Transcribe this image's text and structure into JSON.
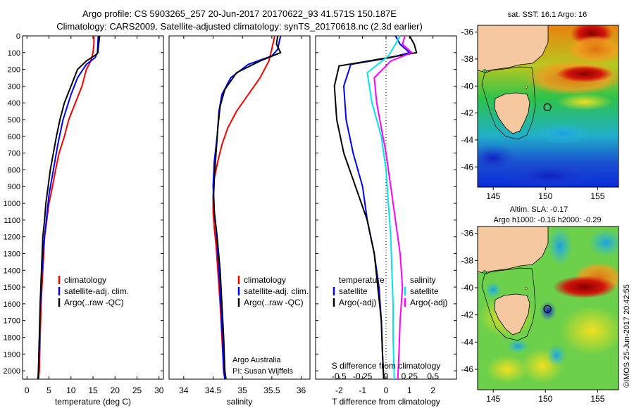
{
  "header": {
    "title_line1": "Argo profile: CS 5903265_257 20-Jun-2017 20170622_93 41.571S 150.187E",
    "title_line2": "Climatology: CARS2009. Satellite-adjusted climatology: synTS_20170618.nc (2.3d earlier)"
  },
  "colors": {
    "climatology": "#ff0000",
    "satellite": "#0000ff",
    "argo": "#000000",
    "satellite_salinity": "#00e5ee",
    "argo_salinity_adj": "#ff00ff",
    "land": "#f5c8a0",
    "map_low": "#0a2ad8",
    "map_mid": "#2ec24a",
    "map_high": "#c8140a"
  },
  "footer": {
    "stamp": "©IMOS 25-Jun-2017 20:42:55"
  },
  "chart_data": [
    {
      "id": "temperature",
      "type": "line",
      "xlabel": "temperature (deg C)",
      "ylabel": "",
      "xlim": [
        -1,
        31
      ],
      "ylim": [
        2050,
        0
      ],
      "x_ticks": [
        0,
        5,
        10,
        15,
        20,
        25,
        30
      ],
      "y_ticks": [
        0,
        100,
        200,
        300,
        400,
        500,
        600,
        700,
        800,
        900,
        1000,
        1100,
        1200,
        1300,
        1400,
        1500,
        1600,
        1700,
        1800,
        1900,
        2000
      ],
      "legend": [
        "climatology",
        "satellite-adj. clim.",
        "Argo(..raw -QC)"
      ],
      "legend_position": "center",
      "notes": [],
      "series": [
        {
          "name": "climatology",
          "color": "#ff0000",
          "points": [
            [
              15.2,
              0
            ],
            [
              15.2,
              50
            ],
            [
              15,
              100
            ],
            [
              14.5,
              150
            ],
            [
              13.5,
              200
            ],
            [
              12.5,
              300
            ],
            [
              11,
              400
            ],
            [
              9.5,
              500
            ],
            [
              8.5,
              600
            ],
            [
              7.3,
              700
            ],
            [
              6.5,
              800
            ],
            [
              5.8,
              900
            ],
            [
              5,
              1000
            ],
            [
              4.5,
              1100
            ],
            [
              4,
              1200
            ],
            [
              3.6,
              1400
            ],
            [
              3.2,
              1600
            ],
            [
              3,
              1800
            ],
            [
              2.8,
              2000
            ],
            [
              2.6,
              2050
            ]
          ]
        },
        {
          "name": "satellite-adj. clim.",
          "color": "#0000ff",
          "points": [
            [
              16.2,
              0
            ],
            [
              16.1,
              50
            ],
            [
              16,
              100
            ],
            [
              15.5,
              130
            ],
            [
              13.5,
              170
            ],
            [
              11.5,
              250
            ],
            [
              10,
              350
            ],
            [
              8.2,
              500
            ],
            [
              7,
              650
            ],
            [
              6,
              800
            ],
            [
              5,
              950
            ],
            [
              4.4,
              1100
            ],
            [
              3.8,
              1250
            ],
            [
              3.3,
              1450
            ],
            [
              3,
              1650
            ],
            [
              2.8,
              1850
            ],
            [
              2.6,
              2050
            ]
          ]
        },
        {
          "name": "Argo(..raw -QC)",
          "color": "#000000",
          "points": [
            [
              16.5,
              0
            ],
            [
              16.3,
              50
            ],
            [
              16.1,
              100
            ],
            [
              15.8,
              110
            ],
            [
              13.5,
              150
            ],
            [
              11.5,
              200
            ],
            [
              10,
              300
            ],
            [
              8.5,
              400
            ],
            [
              7.5,
              500
            ],
            [
              6.7,
              600
            ],
            [
              6,
              700
            ],
            [
              5.3,
              800
            ],
            [
              4.8,
              900
            ],
            [
              4.3,
              1000
            ],
            [
              4,
              1100
            ],
            [
              3.6,
              1200
            ],
            [
              3.3,
              1400
            ],
            [
              3,
              1600
            ],
            [
              2.8,
              1800
            ],
            [
              2.6,
              2000
            ],
            [
              2.5,
              2050
            ]
          ]
        }
      ]
    },
    {
      "id": "salinity",
      "type": "line",
      "xlabel": "salinity",
      "ylabel": "",
      "xlim": [
        33.75,
        36.15
      ],
      "ylim": [
        2050,
        0
      ],
      "x_ticks": [
        34,
        34.5,
        35,
        35.5,
        36
      ],
      "legend": [
        "climatology",
        "satellite-adj. clim.",
        "Argo(..raw -QC)"
      ],
      "legend_position": "center-right",
      "notes": [
        "Argo Australia",
        "PI: Susan Wijffels"
      ],
      "series": [
        {
          "name": "climatology",
          "color": "#ff0000",
          "points": [
            [
              35.55,
              0
            ],
            [
              35.5,
              80
            ],
            [
              35.45,
              150
            ],
            [
              35.3,
              250
            ],
            [
              35.1,
              350
            ],
            [
              34.9,
              450
            ],
            [
              34.75,
              550
            ],
            [
              34.65,
              650
            ],
            [
              34.58,
              750
            ],
            [
              34.52,
              850
            ],
            [
              34.5,
              950
            ],
            [
              34.5,
              1050
            ],
            [
              34.52,
              1150
            ],
            [
              34.55,
              1250
            ],
            [
              34.58,
              1400
            ],
            [
              34.62,
              1600
            ],
            [
              34.65,
              1800
            ],
            [
              34.68,
              2000
            ],
            [
              34.7,
              2050
            ]
          ]
        },
        {
          "name": "satellite-adj. clim.",
          "color": "#0000ff",
          "points": [
            [
              35.65,
              0
            ],
            [
              35.6,
              80
            ],
            [
              35.5,
              120
            ],
            [
              35.1,
              170
            ],
            [
              34.8,
              250
            ],
            [
              34.65,
              350
            ],
            [
              34.6,
              450
            ],
            [
              34.57,
              600
            ],
            [
              34.52,
              750
            ],
            [
              34.5,
              900
            ],
            [
              34.52,
              1050
            ],
            [
              34.56,
              1200
            ],
            [
              34.6,
              1400
            ],
            [
              34.63,
              1600
            ],
            [
              34.66,
              1800
            ],
            [
              34.68,
              2000
            ],
            [
              34.7,
              2050
            ]
          ]
        },
        {
          "name": "Argo(..raw -QC)",
          "color": "#000000",
          "points": [
            [
              35.6,
              0
            ],
            [
              35.58,
              50
            ],
            [
              35.65,
              100
            ],
            [
              35.3,
              150
            ],
            [
              34.9,
              220
            ],
            [
              34.7,
              320
            ],
            [
              34.62,
              420
            ],
            [
              34.58,
              550
            ],
            [
              34.55,
              700
            ],
            [
              34.52,
              850
            ],
            [
              34.51,
              950
            ],
            [
              34.52,
              1050
            ],
            [
              34.57,
              1200
            ],
            [
              34.62,
              1400
            ],
            [
              34.65,
              1600
            ],
            [
              34.68,
              1800
            ],
            [
              34.7,
              2000
            ],
            [
              34.72,
              2050
            ]
          ]
        }
      ]
    },
    {
      "id": "difference",
      "type": "line",
      "xlabel": "T difference from climatology",
      "xlabel_top": "S difference from climatology",
      "ylabel": "",
      "xlim": [
        -3,
        3
      ],
      "ylim": [
        2050,
        0
      ],
      "x_ticks": [
        -2,
        -1,
        0,
        1,
        2
      ],
      "s_ticks": [
        -0.5,
        -0.25,
        0,
        0.25,
        0.5
      ],
      "s_tick_labels": [
        "-0.5",
        "-0.25",
        "0",
        "0.25",
        "0.5"
      ],
      "legend_t_title": "temperature",
      "legend_s_title": "salinity",
      "legend": [
        "satellite",
        "Argo(-adj)",
        "satellite",
        "Argo(-adj)"
      ],
      "legend_position": "bottom",
      "notes": [],
      "series": [
        {
          "name": "satellite",
          "group": "temperature",
          "color": "#0000ff",
          "points": [
            [
              0.4,
              0
            ],
            [
              0.6,
              50
            ],
            [
              1,
              100
            ],
            [
              0.2,
              130
            ],
            [
              -1.5,
              170
            ],
            [
              -1.8,
              300
            ],
            [
              -1.7,
              500
            ],
            [
              -1.4,
              700
            ],
            [
              -1,
              900
            ],
            [
              -0.8,
              1100
            ],
            [
              -0.5,
              1300
            ],
            [
              -0.3,
              1500
            ],
            [
              -0.2,
              1700
            ],
            [
              -0.15,
              1900
            ],
            [
              -0.1,
              2050
            ]
          ]
        },
        {
          "name": "Argo(-adj)",
          "group": "temperature",
          "color": "#000000",
          "points": [
            [
              1,
              0
            ],
            [
              1.2,
              50
            ],
            [
              1.3,
              100
            ],
            [
              0.5,
              120
            ],
            [
              -2,
              180
            ],
            [
              -2.2,
              300
            ],
            [
              -2.1,
              500
            ],
            [
              -1.8,
              700
            ],
            [
              -1.3,
              900
            ],
            [
              -0.8,
              1100
            ],
            [
              -0.5,
              1300
            ],
            [
              -0.35,
              1500
            ],
            [
              -0.2,
              1700
            ],
            [
              -0.15,
              1900
            ],
            [
              -0.1,
              2050
            ]
          ]
        },
        {
          "name": "satellite",
          "group": "salinity",
          "color": "#00e5ee",
          "points": [
            [
              0.6,
              0
            ],
            [
              0.4,
              50
            ],
            [
              0.1,
              120
            ],
            [
              -0.8,
              220
            ],
            [
              -0.6,
              400
            ],
            [
              -0.2,
              600
            ],
            [
              0,
              800
            ],
            [
              0.1,
              1000
            ],
            [
              0.2,
              1200
            ],
            [
              0.25,
              1400
            ],
            [
              0.3,
              1600
            ],
            [
              0.3,
              1800
            ],
            [
              0.35,
              2050
            ]
          ]
        },
        {
          "name": "Argo(-adj)",
          "group": "salinity",
          "color": "#ff00ff",
          "points": [
            [
              0.8,
              0
            ],
            [
              0.7,
              50
            ],
            [
              1.1,
              100
            ],
            [
              0.2,
              150
            ],
            [
              -0.5,
              250
            ],
            [
              -0.4,
              400
            ],
            [
              -0.2,
              550
            ],
            [
              0,
              700
            ],
            [
              0.2,
              900
            ],
            [
              0.4,
              1100
            ],
            [
              0.6,
              1300
            ],
            [
              0.7,
              1500
            ],
            [
              0.6,
              1700
            ],
            [
              0.55,
              1900
            ],
            [
              0.5,
              2050
            ]
          ]
        }
      ]
    },
    {
      "id": "sst-map",
      "type": "heatmap",
      "title": "sat. SST: 16.1  Argo: 16",
      "x_ticks": [
        145,
        150,
        155
      ],
      "y_ticks": [
        -36,
        -38,
        -40,
        -42,
        -44,
        -46
      ],
      "xlim": [
        143.5,
        157
      ],
      "ylim": [
        -47.5,
        -35.5
      ],
      "argo_position": [
        150.19,
        -41.57
      ]
    },
    {
      "id": "sla-map",
      "type": "heatmap",
      "title_line1": "Altim. SLA: -0.17",
      "title_line2": "Argo h1000: -0.16  h2000: -0.29",
      "x_ticks": [
        145,
        150,
        155
      ],
      "y_ticks": [
        -36,
        -38,
        -40,
        -42,
        -44,
        -46
      ],
      "xlim": [
        143.5,
        157
      ],
      "ylim": [
        -47.5,
        -35.5
      ],
      "argo_position": [
        150.19,
        -41.57
      ]
    }
  ]
}
